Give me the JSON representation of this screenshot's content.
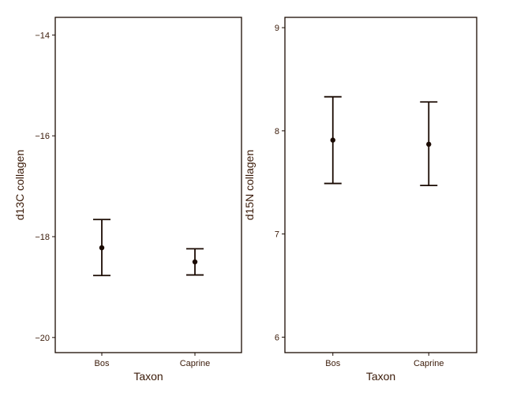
{
  "chart_data": [
    {
      "type": "scatter",
      "title": "",
      "xlabel": "Taxon",
      "ylabel": "d13C collagen",
      "categories": [
        "Bos",
        "Caprine"
      ],
      "ylim": [
        -20.3,
        -13.65
      ],
      "yticks": [
        -14,
        -16,
        -18,
        -20
      ],
      "ytick_labels": [
        "−14",
        "−16",
        "−18",
        "−20"
      ],
      "grid": false,
      "series": [
        {
          "points": [
            {
              "x": "Bos",
              "mean": -18.22,
              "lower": -18.77,
              "upper": -17.66
            },
            {
              "x": "Caprine",
              "mean": -18.5,
              "lower": -18.76,
              "upper": -18.24
            }
          ]
        }
      ]
    },
    {
      "type": "scatter",
      "title": "",
      "xlabel": "Taxon",
      "ylabel": "d15N collagen",
      "categories": [
        "Bos",
        "Caprine"
      ],
      "ylim": [
        5.85,
        9.1
      ],
      "yticks": [
        6,
        7,
        8,
        9
      ],
      "ytick_labels": [
        "6",
        "7",
        "8",
        "9"
      ],
      "grid": false,
      "series": [
        {
          "points": [
            {
              "x": "Bos",
              "mean": 7.91,
              "lower": 7.49,
              "upper": 8.33
            },
            {
              "x": "Caprine",
              "mean": 7.87,
              "lower": 7.47,
              "upper": 8.28
            }
          ]
        }
      ]
    }
  ]
}
